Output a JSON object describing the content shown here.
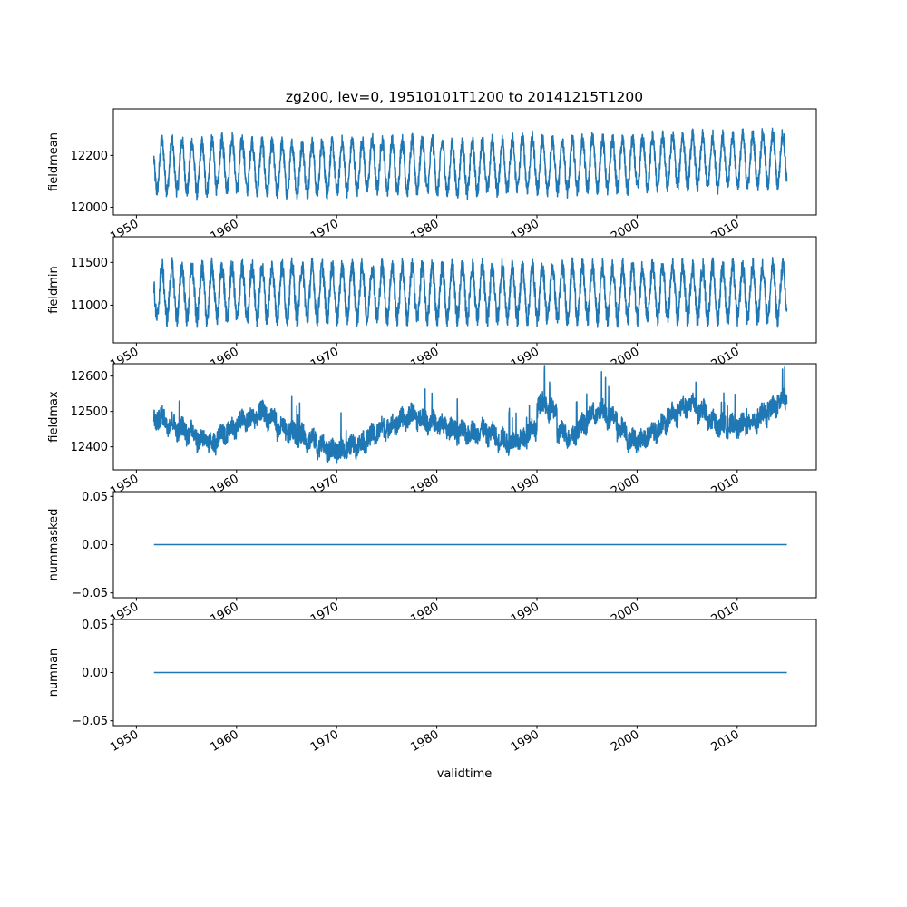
{
  "chart_data": {
    "type": "line",
    "title": "zg200, lev=0, 19510101T1200 to 20141215T1200",
    "xlabel": "validtime",
    "x_range_years": [
      1951.75,
      2014.96
    ],
    "xlim": [
      1947.7,
      2017.9
    ],
    "x_ticks": [
      "1950",
      "1960",
      "1970",
      "1980",
      "1990",
      "2000",
      "2010"
    ],
    "x_tick_values": [
      1950,
      1960,
      1970,
      1980,
      1990,
      2000,
      2010
    ],
    "line_color": "#1f77b4",
    "series": [
      {
        "name": "fieldmean",
        "ylabel": "fieldmean",
        "ylim": [
          11970,
          12380
        ],
        "y_ticks": [
          "12000",
          "12200"
        ],
        "y_tick_values": [
          12000,
          12200
        ],
        "mean": 12165,
        "seasonal_amplitude": 95,
        "noise": 30,
        "yearly_baseline": [
          12160,
          12160,
          12160,
          12160,
          12155,
          12150,
          12160,
          12165,
          12170,
          12165,
          12160,
          12155,
          12150,
          12150,
          12145,
          12145,
          12150,
          12150,
          12150,
          12155,
          12160,
          12160,
          12165,
          12165,
          12160,
          12160,
          12160,
          12165,
          12160,
          12155,
          12150,
          12150,
          12155,
          12160,
          12160,
          12160,
          12165,
          12170,
          12170,
          12165,
          12165,
          12160,
          12160,
          12165,
          12170,
          12170,
          12165,
          12165,
          12165,
          12170,
          12175,
          12175,
          12180,
          12180,
          12180,
          12175,
          12175,
          12175,
          12180,
          12180,
          12180,
          12185,
          12185,
          12185
        ]
      },
      {
        "name": "fieldmin",
        "ylabel": "fieldmin",
        "ylim": [
          10560,
          11800
        ],
        "y_ticks": [
          "11000",
          "11500"
        ],
        "y_tick_values": [
          11000,
          11500
        ],
        "mean": 11150,
        "seasonal_amplitude": 300,
        "noise": 110,
        "yearly_baseline": [
          11150,
          11150,
          11150,
          11150,
          11140,
          11140,
          11150,
          11150,
          11140,
          11140,
          11150,
          11150,
          11150,
          11150,
          11150,
          11150,
          11150,
          11150,
          11150,
          11150,
          11150,
          11150,
          11150,
          11150,
          11150,
          11150,
          11150,
          11150,
          11150,
          11150,
          11150,
          11150,
          11150,
          11150,
          11150,
          11150,
          11150,
          11150,
          11150,
          11150,
          11150,
          11150,
          11150,
          11150,
          11150,
          11150,
          11150,
          11150,
          11150,
          11150,
          11150,
          11150,
          11150,
          11150,
          11150,
          11150,
          11150,
          11150,
          11150,
          11150,
          11150,
          11150,
          11150,
          11150
        ]
      },
      {
        "name": "fieldmax",
        "ylabel": "fieldmax",
        "ylim": [
          12335,
          12635
        ],
        "y_ticks": [
          "12400",
          "12500",
          "12600"
        ],
        "y_tick_values": [
          12400,
          12500,
          12600
        ],
        "seasonal_amplitude": 10,
        "noise": 28,
        "yearly_baseline": [
          12480,
          12480,
          12465,
          12450,
          12440,
          12420,
          12410,
          12430,
          12450,
          12470,
          12480,
          12495,
          12480,
          12450,
          12440,
          12430,
          12420,
          12400,
          12390,
          12390,
          12400,
          12410,
          12430,
          12450,
          12460,
          12475,
          12490,
          12480,
          12470,
          12460,
          12450,
          12440,
          12440,
          12445,
          12435,
          12420,
          12410,
          12420,
          12450,
          12520,
          12500,
          12440,
          12430,
          12460,
          12490,
          12500,
          12480,
          12450,
          12420,
          12420,
          12440,
          12460,
          12490,
          12510,
          12520,
          12500,
          12470,
          12460,
          12460,
          12460,
          12470,
          12490,
          12510,
          12530
        ]
      },
      {
        "name": "nummasked",
        "ylabel": "nummasked",
        "ylim": [
          -0.055,
          0.055
        ],
        "y_ticks": [
          "−0.05",
          "0.00",
          "0.05"
        ],
        "y_tick_values": [
          -0.05,
          0,
          0.05
        ],
        "constant": 0
      },
      {
        "name": "numnan",
        "ylabel": "numnan",
        "ylim": [
          -0.055,
          0.055
        ],
        "y_ticks": [
          "−0.05",
          "0.00",
          "0.05"
        ],
        "y_tick_values": [
          -0.05,
          0,
          0.05
        ],
        "constant": 0
      }
    ]
  }
}
